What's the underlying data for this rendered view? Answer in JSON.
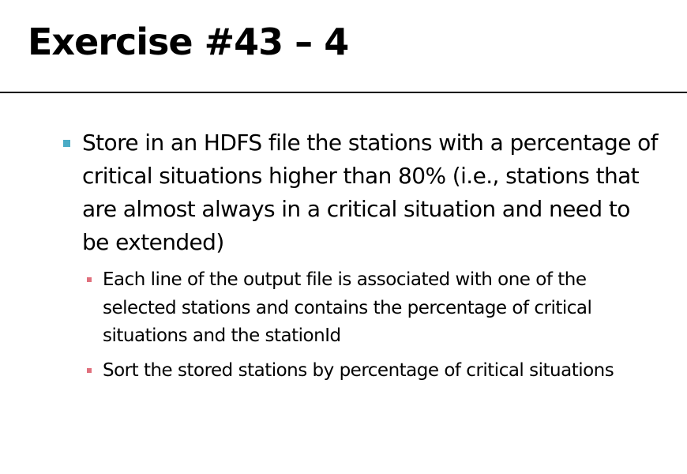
{
  "slide": {
    "title": "Exercise #43 – 4",
    "colors": {
      "primary_bullet": "#4bacc6",
      "secondary_bullet": "#e0707d"
    },
    "bullets": [
      {
        "text": "Store in an HDFS file the stations with a percentage of critical situations higher than 80% (i.e., stations that are almost always in a critical situation and need to be extended)",
        "sub": [
          "Each line of the output file is associated with one of the selected stations and contains the percentage of critical situations and the stationId",
          "Sort the stored stations by percentage of critical situations"
        ]
      }
    ]
  }
}
